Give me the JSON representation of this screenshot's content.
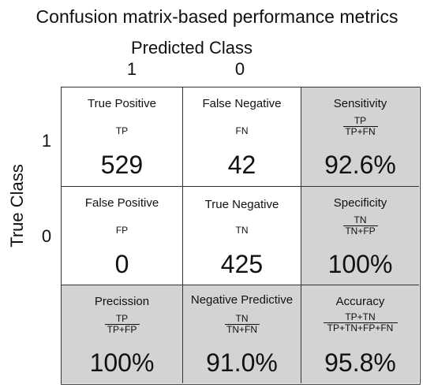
{
  "title": "Confusion matrix-based performance metrics",
  "predicted_label": "Predicted Class",
  "true_label": "True Class",
  "predicted_classes": [
    "1",
    "0"
  ],
  "true_classes": [
    "1",
    "0"
  ],
  "cells": {
    "tp": {
      "title": "True Positive",
      "abbr": "TP",
      "value": "529"
    },
    "fn": {
      "title": "False Negative",
      "abbr": "FN",
      "value": "42"
    },
    "fp": {
      "title": "False Positive",
      "abbr": "FP",
      "value": "0"
    },
    "tn": {
      "title": "True Negative",
      "abbr": "TN",
      "value": "425"
    }
  },
  "metrics": {
    "sensitivity": {
      "title": "Sensitivity",
      "numerator": "TP",
      "denominator": "TP+FN",
      "value": "92.6%"
    },
    "specificity": {
      "title": "Specificity",
      "numerator": "TN",
      "denominator": "TN+FP",
      "value": "100%"
    },
    "precision": {
      "title": "Precission",
      "numerator": "TP",
      "denominator": "TP+FP",
      "value": "100%"
    },
    "npv": {
      "title": "Negative Predictive",
      "numerator": "TN",
      "denominator": "TN+FN",
      "value": "91.0%"
    },
    "accuracy": {
      "title": "Accuracy",
      "numerator": "TP+TN",
      "denominator": "TP+TN+FP+FN",
      "value": "95.8%"
    }
  },
  "colors": {
    "metric_fill": "#d3d3d3",
    "cell_fill": "#ffffff",
    "border": "#333333"
  }
}
